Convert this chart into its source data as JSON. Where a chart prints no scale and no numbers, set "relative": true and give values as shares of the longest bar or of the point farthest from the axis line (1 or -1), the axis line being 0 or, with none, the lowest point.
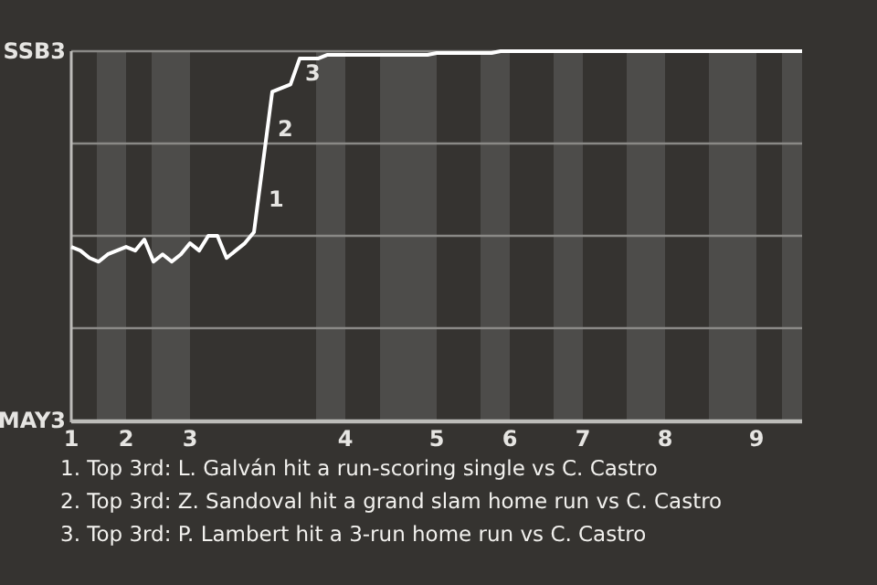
{
  "chart_data": {
    "type": "line",
    "relative": true,
    "categories": [
      "1",
      null,
      null,
      null,
      null,
      null,
      "2",
      null,
      null,
      null,
      null,
      null,
      null,
      "3",
      null,
      null,
      null,
      null,
      null,
      null,
      null,
      null,
      null,
      null,
      null,
      null,
      null,
      null,
      null,
      null,
      "4",
      null,
      null,
      null,
      null,
      null,
      null,
      null,
      null,
      null,
      "5",
      null,
      null,
      null,
      null,
      null,
      null,
      null,
      "6",
      null,
      null,
      null,
      null,
      null,
      null,
      null,
      "7",
      null,
      null,
      null,
      null,
      null,
      null,
      null,
      null,
      "8",
      null,
      null,
      null,
      null,
      null,
      null,
      null,
      null,
      null,
      "9",
      null,
      null,
      null,
      null,
      null
    ],
    "series": [
      {
        "color": "#ffffff",
        "values": [
          0.47,
          0.46,
          0.44,
          0.43,
          0.45,
          0.46,
          0.47,
          0.46,
          0.49,
          0.43,
          0.45,
          0.43,
          0.45,
          0.48,
          0.46,
          0.5,
          0.5,
          0.44,
          0.46,
          0.48,
          0.51,
          0.7,
          0.89,
          0.9,
          0.91,
          0.98,
          0.98,
          0.98,
          0.99,
          0.99,
          0.99,
          0.99,
          0.99,
          0.99,
          0.99,
          0.99,
          0.99,
          0.99,
          0.99,
          0.99,
          0.995,
          0.995,
          0.995,
          0.995,
          0.995,
          0.995,
          0.995,
          1,
          1,
          1,
          1,
          1,
          1,
          1,
          1,
          1,
          1,
          1,
          1,
          1,
          1,
          1,
          1,
          1,
          1,
          1,
          1,
          1,
          1,
          1,
          1,
          1,
          1,
          1,
          1,
          1,
          1,
          1,
          1,
          1,
          1
        ]
      }
    ],
    "marker": "none",
    "line_style": "solid",
    "ref_lines": [
      {
        "axis": "y",
        "value": 0,
        "label": "MAY3",
        "color": "#bdbcb9"
      },
      {
        "axis": "y",
        "value": 0.25,
        "label": null,
        "color": "#8a8986"
      },
      {
        "axis": "y",
        "value": 0.5,
        "label": null,
        "color": "#8a8986"
      },
      {
        "axis": "y",
        "value": 0.75,
        "label": null,
        "color": "#8a8986"
      },
      {
        "axis": "y",
        "value": 1,
        "label": "SSB3",
        "color": "#8a8986"
      }
    ],
    "annotations": [
      "1",
      "2",
      "3",
      "1. Top 3rd: L. Galván hit a run-scoring single vs C. Castro",
      "2. Top 3rd: Z. Sandoval hit a grand slam home run vs C. Castro",
      "3. Top 3rd: P. Lambert hit a 3-run home run vs C. Castro"
    ]
  }
}
